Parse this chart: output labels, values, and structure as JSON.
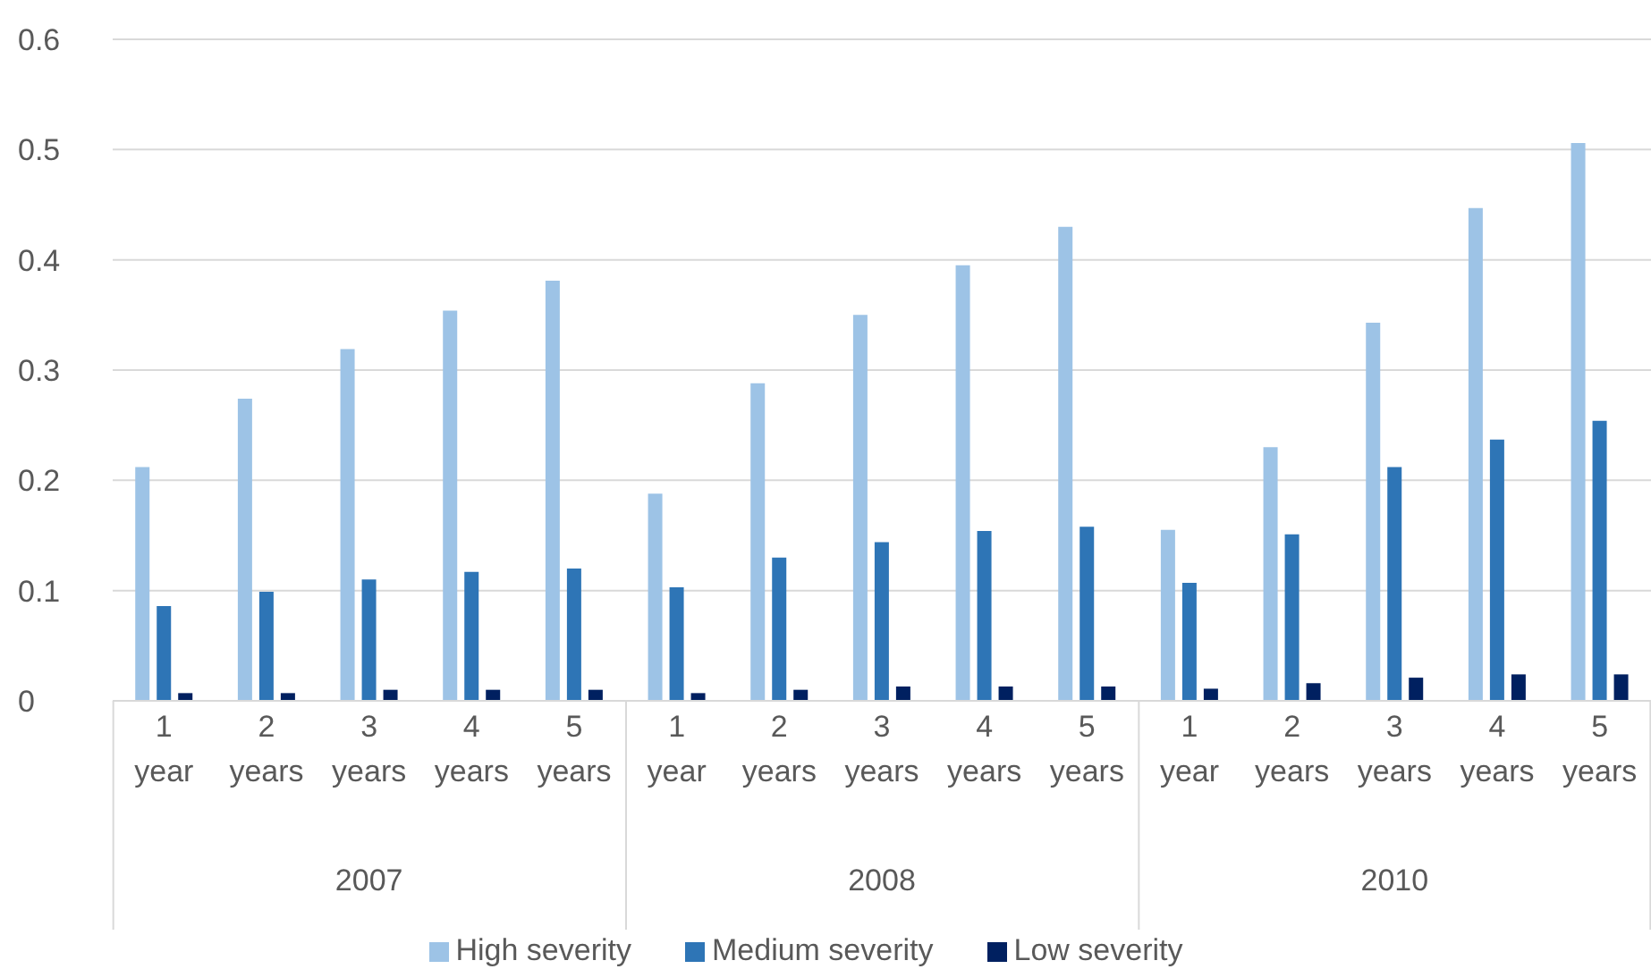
{
  "chart_data": {
    "type": "bar",
    "categories": [
      "1 year",
      "2 years",
      "3 years",
      "4 years",
      "5 years",
      "1 year",
      "2 years",
      "3 years",
      "4 years",
      "5 years",
      "1 year",
      "2 years",
      "3 years",
      "4 years",
      "5 years"
    ],
    "annotations": [
      "2007",
      "2008",
      "2010"
    ],
    "series": [
      {
        "name": "High severity",
        "color": "#9dc3e6",
        "values": [
          0.212,
          0.274,
          0.319,
          0.354,
          0.381,
          0.188,
          0.288,
          0.35,
          0.395,
          0.43,
          0.155,
          0.23,
          0.343,
          0.447,
          0.506
        ]
      },
      {
        "name": "Medium severity",
        "color": "#2e75b6",
        "values": [
          0.086,
          0.099,
          0.11,
          0.117,
          0.12,
          0.103,
          0.13,
          0.144,
          0.154,
          0.158,
          0.107,
          0.151,
          0.212,
          0.237,
          0.254
        ]
      },
      {
        "name": "Low severity",
        "color": "#002060",
        "values": [
          0.007,
          0.007,
          0.01,
          0.01,
          0.01,
          0.007,
          0.01,
          0.013,
          0.013,
          0.013,
          0.011,
          0.016,
          0.021,
          0.024,
          0.024
        ]
      }
    ],
    "ylim": [
      0,
      0.6
    ],
    "yticks": [
      0,
      0.1,
      0.2,
      0.3,
      0.4,
      0.5,
      0.6
    ],
    "grid": "y",
    "legend": "bottom"
  }
}
